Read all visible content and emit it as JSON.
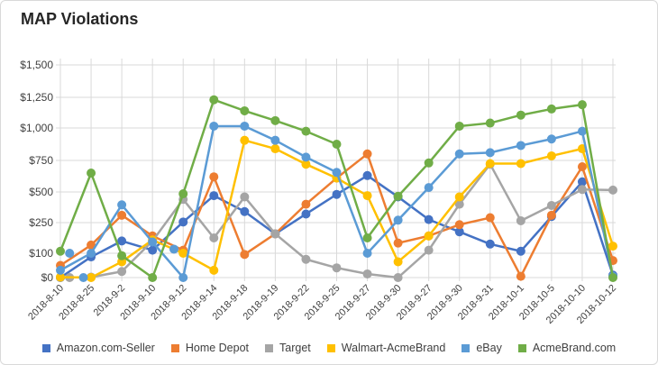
{
  "chart_data": {
    "type": "line",
    "title": "MAP Violations",
    "categories": [
      "2018-8-10",
      "2018-8-25",
      "2018-9-2",
      "2018-9-10",
      "2018-9-12",
      "2018-9-14",
      "2018-9-18",
      "2018-9-19",
      "2018-9-22",
      "2018-9-25",
      "2018-9-27",
      "2018-9-30",
      "2018-9-27",
      "2018-9-30",
      "2018-9-31",
      "2018-10-1",
      "2018-10-5",
      "2018-10-10",
      "2018-10-12"
    ],
    "y_ticks": [
      {
        "label": "$0",
        "value": 0
      },
      {
        "label": "$100",
        "value": 100
      },
      {
        "label": "$250",
        "value": 250
      },
      {
        "label": "$500",
        "value": 500
      },
      {
        "label": "$750",
        "value": 750
      },
      {
        "label": "$1,000",
        "value": 1000
      },
      {
        "label": "$1,250",
        "value": 1250
      },
      {
        "label": "$1,500",
        "value": 1500
      }
    ],
    "grid": true,
    "legend_position": "bottom",
    "series": [
      {
        "name": "Amazon.com-Seller",
        "color": "#4472C4",
        "values": [
          [
            0,
            0
          ],
          [
            1,
            85
          ],
          [
            2,
            160
          ],
          [
            3,
            115
          ],
          [
            4,
            255
          ],
          [
            5,
            470
          ],
          [
            6,
            340
          ],
          [
            7,
            195
          ],
          [
            8,
            320
          ],
          [
            9,
            480
          ],
          [
            10,
            630
          ],
          [
            11,
            460
          ],
          [
            12,
            275
          ],
          [
            13,
            205
          ],
          [
            14,
            145
          ],
          [
            15,
            110
          ],
          [
            16,
            300
          ],
          [
            17,
            580
          ],
          [
            18,
            10
          ]
        ]
      },
      {
        "name": "Home Depot",
        "color": "#ED7D31",
        "values": [
          [
            0,
            50
          ],
          [
            1,
            140
          ],
          [
            2,
            310
          ],
          [
            3,
            185
          ],
          [
            4,
            115
          ],
          [
            5,
            620
          ],
          [
            6,
            95
          ],
          [
            7,
            195
          ],
          [
            8,
            400
          ],
          [
            9,
            610
          ],
          [
            10,
            800
          ],
          [
            11,
            150
          ],
          [
            12,
            185
          ],
          [
            13,
            240
          ],
          [
            14,
            290
          ],
          [
            15,
            5
          ],
          [
            16,
            310
          ],
          [
            17,
            700
          ],
          [
            18,
            70
          ]
        ]
      },
      {
        "name": "Target",
        "color": "#A5A5A5",
        "values": [
          [
            0,
            0
          ],
          [
            1,
            2
          ],
          [
            2,
            25
          ],
          [
            3,
            160
          ],
          [
            4,
            440
          ],
          [
            5,
            175
          ],
          [
            6,
            460
          ],
          [
            7,
            195
          ],
          [
            8,
            75
          ],
          [
            9,
            40
          ],
          [
            10,
            15
          ],
          [
            11,
            0
          ],
          [
            12,
            115
          ],
          [
            13,
            400
          ],
          [
            14,
            720
          ],
          [
            15,
            265
          ],
          [
            16,
            390
          ],
          [
            17,
            520
          ],
          [
            18,
            515
          ]
        ]
      },
      {
        "name": "Walmart-AcmeBrand",
        "color": "#FFC000",
        "values": [
          [
            0,
            2
          ],
          [
            1,
            0
          ],
          [
            2,
            65
          ],
          [
            3,
            165
          ],
          [
            4,
            100
          ],
          [
            5,
            30
          ],
          [
            6,
            905
          ],
          [
            7,
            840
          ],
          [
            8,
            720
          ],
          [
            9,
            610
          ],
          [
            10,
            470
          ],
          [
            11,
            65
          ],
          [
            12,
            185
          ],
          [
            13,
            460
          ],
          [
            14,
            725
          ],
          [
            15,
            725
          ],
          [
            16,
            785
          ],
          [
            17,
            840
          ],
          [
            18,
            135
          ]
        ]
      },
      {
        "name": "eBay",
        "color": "#5B9BD5",
        "values": [
          [
            0,
            30
          ],
          [
            1,
            100
          ],
          [
            2,
            395
          ],
          [
            3,
            155
          ],
          [
            4,
            0
          ],
          [
            5,
            1015
          ],
          [
            6,
            1015
          ],
          [
            7,
            905
          ],
          [
            8,
            775
          ],
          [
            9,
            655
          ],
          [
            10,
            100
          ],
          [
            11,
            270
          ],
          [
            12,
            535
          ],
          [
            13,
            800
          ],
          [
            14,
            810
          ],
          [
            15,
            865
          ],
          [
            16,
            915
          ],
          [
            17,
            975
          ],
          [
            18,
            5
          ]
        ]
      },
      {
        "name": "AcmeBrand.com",
        "color": "#70AD47",
        "values": [
          [
            0,
            110
          ],
          [
            1,
            650
          ],
          [
            2,
            90
          ],
          [
            3,
            0
          ],
          [
            4,
            485
          ],
          [
            5,
            1230
          ],
          [
            6,
            1140
          ],
          [
            7,
            1060
          ],
          [
            8,
            975
          ],
          [
            9,
            875
          ],
          [
            10,
            175
          ],
          [
            11,
            465
          ],
          [
            12,
            730
          ],
          [
            13,
            1015
          ],
          [
            14,
            1040
          ],
          [
            15,
            1105
          ],
          [
            16,
            1155
          ],
          [
            17,
            1190
          ],
          [
            18,
            0
          ]
        ]
      }
    ],
    "extra_points": [
      {
        "series": 4,
        "x": 0.3,
        "y": 100
      },
      {
        "series": 4,
        "x": 0.75,
        "y": 0
      },
      {
        "series": 4,
        "x": 3.7,
        "y": 120
      },
      {
        "series": 2,
        "x": 0.3,
        "y": 0
      }
    ]
  }
}
